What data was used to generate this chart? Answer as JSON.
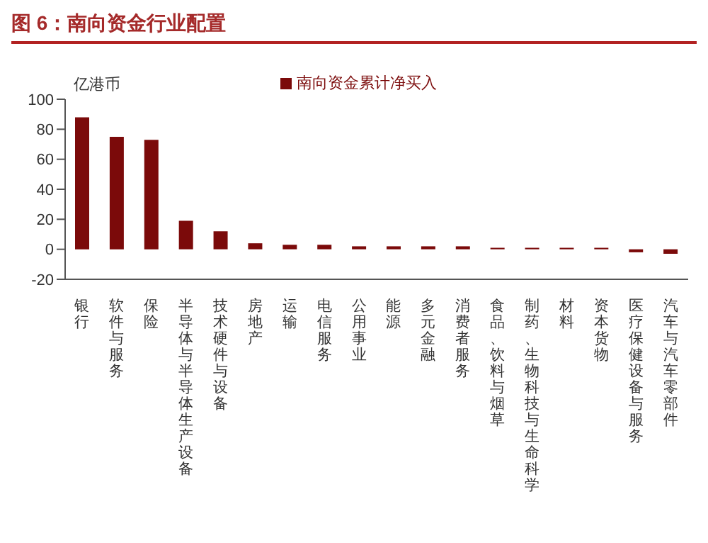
{
  "chart_data": {
    "type": "bar",
    "title": "图 6：南向资金行业配置",
    "ylabel": "亿港币",
    "categories": [
      "银行",
      "软件与服务",
      "保险",
      "半导体与半导体生产设备",
      "技术硬件与设备",
      "房地产",
      "运输",
      "电信服务",
      "公用事业",
      "能源",
      "多元金融",
      "消费者服务",
      "食品、饮料与烟草",
      "制药、生物科技与生命科学",
      "材料",
      "资本货物",
      "医疗保健设备与服务",
      "汽车与汽车零部件"
    ],
    "series": [
      {
        "name": "南向资金累计净买入",
        "color": "#7b0a0a",
        "values": [
          88,
          75,
          73,
          19,
          12,
          4,
          3,
          3,
          2,
          2,
          2,
          2,
          1,
          1,
          1,
          1,
          -2,
          -3
        ]
      }
    ],
    "ylim": [
      -20,
      100
    ],
    "yticks": [
      -20,
      0,
      20,
      40,
      60,
      80,
      100
    ],
    "legend": "top"
  }
}
